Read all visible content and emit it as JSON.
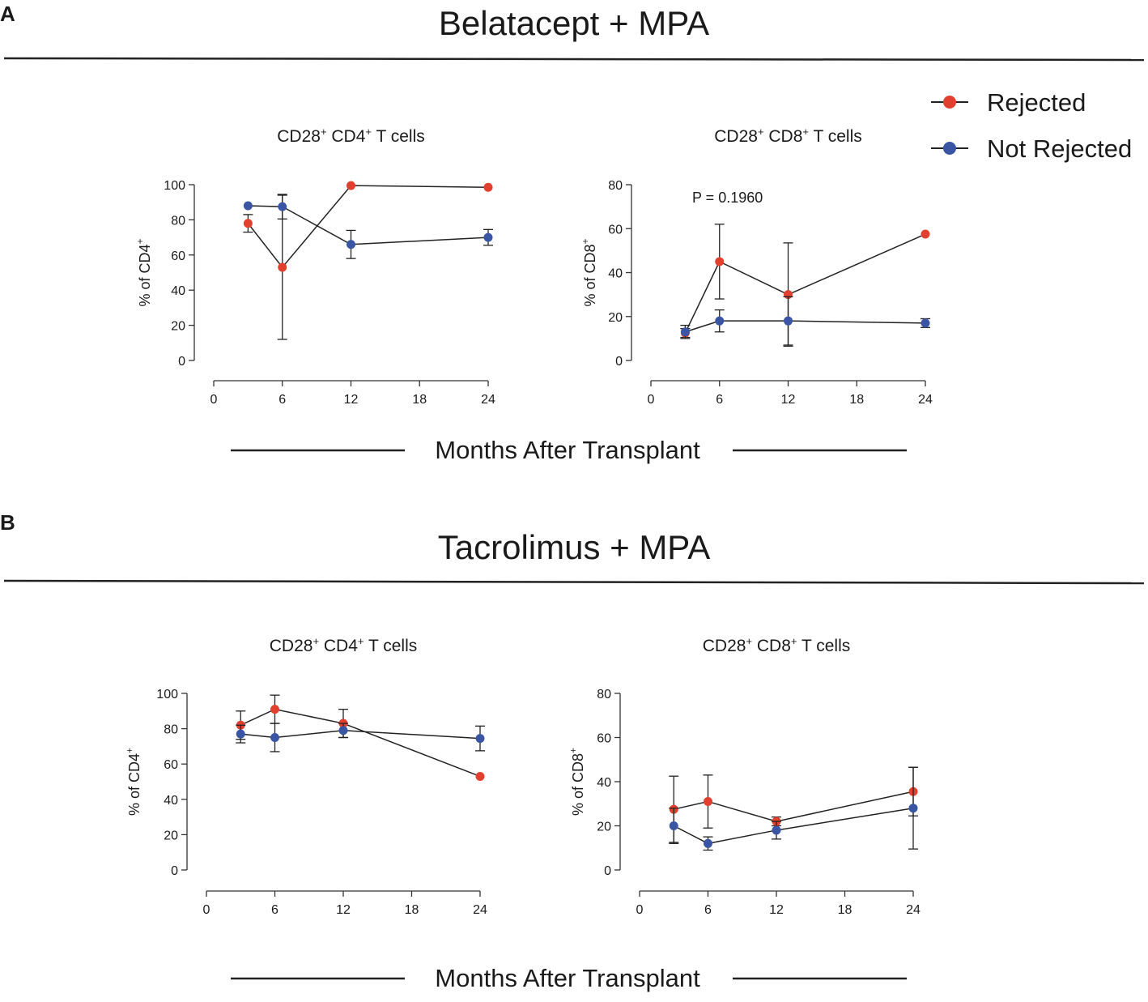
{
  "figure": {
    "sections": [
      {
        "letter": "A",
        "title": "Belatacept + MPA",
        "xlabel": "Months After Transplant"
      },
      {
        "letter": "B",
        "title": "Tacrolimus + MPA",
        "xlabel": "Months After Transplant"
      }
    ],
    "legend": [
      {
        "label": "Rejected",
        "color": "#e2402f"
      },
      {
        "label": "Not Rejected",
        "color": "#3a55a4"
      }
    ]
  },
  "chart_data": [
    {
      "type": "line",
      "section": "A",
      "title_main": "CD28",
      "title_sup1": "+",
      "title_mid": " CD4",
      "title_sup2": "+",
      "title_end": " T cells",
      "ylabel_main": "% of CD4",
      "ylabel_sup": "+",
      "xlim": [
        0,
        24
      ],
      "ylim": [
        0,
        100
      ],
      "xticks": [
        "0",
        "6",
        "12",
        "18",
        "24"
      ],
      "yticks": [
        "0",
        "20",
        "40",
        "60",
        "80",
        "100"
      ],
      "annotation": "",
      "series": [
        {
          "name": "Rejected",
          "color": "#e2402f",
          "x": [
            3,
            6,
            12,
            24
          ],
          "y": [
            78,
            53,
            99.5,
            98.5
          ],
          "err": [
            5,
            41,
            0,
            0
          ]
        },
        {
          "name": "Not Rejected",
          "color": "#3a55a4",
          "x": [
            3,
            6,
            12,
            24
          ],
          "y": [
            88,
            87.5,
            66,
            70
          ],
          "err": [
            0,
            7,
            8,
            4.5
          ]
        }
      ]
    },
    {
      "type": "line",
      "section": "A",
      "title_main": "CD28",
      "title_sup1": "+",
      "title_mid": " CD8",
      "title_sup2": "+",
      "title_end": " T cells",
      "ylabel_main": "% of CD8",
      "ylabel_sup": "+",
      "xlim": [
        0,
        24
      ],
      "ylim": [
        0,
        80
      ],
      "xticks": [
        "0",
        "6",
        "12",
        "18",
        "24"
      ],
      "yticks": [
        "0",
        "20",
        "40",
        "60",
        "80"
      ],
      "annotation": "P = 0.1960",
      "series": [
        {
          "name": "Rejected",
          "color": "#e2402f",
          "x": [
            3,
            6,
            12,
            24
          ],
          "y": [
            12.5,
            45,
            30,
            57.5
          ],
          "err": [
            2,
            17,
            23.5,
            0
          ]
        },
        {
          "name": "Not Rejected",
          "color": "#3a55a4",
          "x": [
            3,
            6,
            12,
            24
          ],
          "y": [
            13,
            18,
            18,
            17
          ],
          "err": [
            3,
            5,
            11,
            2
          ]
        }
      ]
    },
    {
      "type": "line",
      "section": "B",
      "title_main": "CD28",
      "title_sup1": "+",
      "title_mid": " CD4",
      "title_sup2": "+",
      "title_end": " T cells",
      "ylabel_main": "% of CD4",
      "ylabel_sup": "+",
      "xlim": [
        0,
        24
      ],
      "ylim": [
        0,
        100
      ],
      "xticks": [
        "0",
        "6",
        "12",
        "18",
        "24"
      ],
      "yticks": [
        "0",
        "20",
        "40",
        "60",
        "80",
        "100"
      ],
      "annotation": "",
      "series": [
        {
          "name": "Rejected",
          "color": "#e2402f",
          "x": [
            3,
            6,
            12,
            24
          ],
          "y": [
            82,
            91,
            83,
            53
          ],
          "err": [
            8,
            8,
            8,
            0
          ]
        },
        {
          "name": "Not Rejected",
          "color": "#3a55a4",
          "x": [
            3,
            6,
            12,
            24
          ],
          "y": [
            77,
            75,
            79,
            74.5
          ],
          "err": [
            5,
            8,
            4,
            7
          ]
        }
      ]
    },
    {
      "type": "line",
      "section": "B",
      "title_main": "CD28",
      "title_sup1": "+",
      "title_mid": " CD8",
      "title_sup2": "+",
      "title_end": " T cells",
      "ylabel_main": "% of CD8",
      "ylabel_sup": "+",
      "xlim": [
        0,
        24
      ],
      "ylim": [
        0,
        80
      ],
      "xticks": [
        "0",
        "6",
        "12",
        "18",
        "24"
      ],
      "yticks": [
        "0",
        "20",
        "40",
        "60",
        "80"
      ],
      "annotation": "",
      "series": [
        {
          "name": "Rejected",
          "color": "#e2402f",
          "x": [
            3,
            6,
            12,
            24
          ],
          "y": [
            27.5,
            31,
            22,
            35.5
          ],
          "err": [
            15,
            12,
            2,
            11
          ]
        },
        {
          "name": "Not Rejected",
          "color": "#3a55a4",
          "x": [
            3,
            6,
            12,
            24
          ],
          "y": [
            20,
            12,
            18,
            28
          ],
          "err": [
            8,
            3,
            4,
            18.5
          ]
        }
      ]
    }
  ]
}
